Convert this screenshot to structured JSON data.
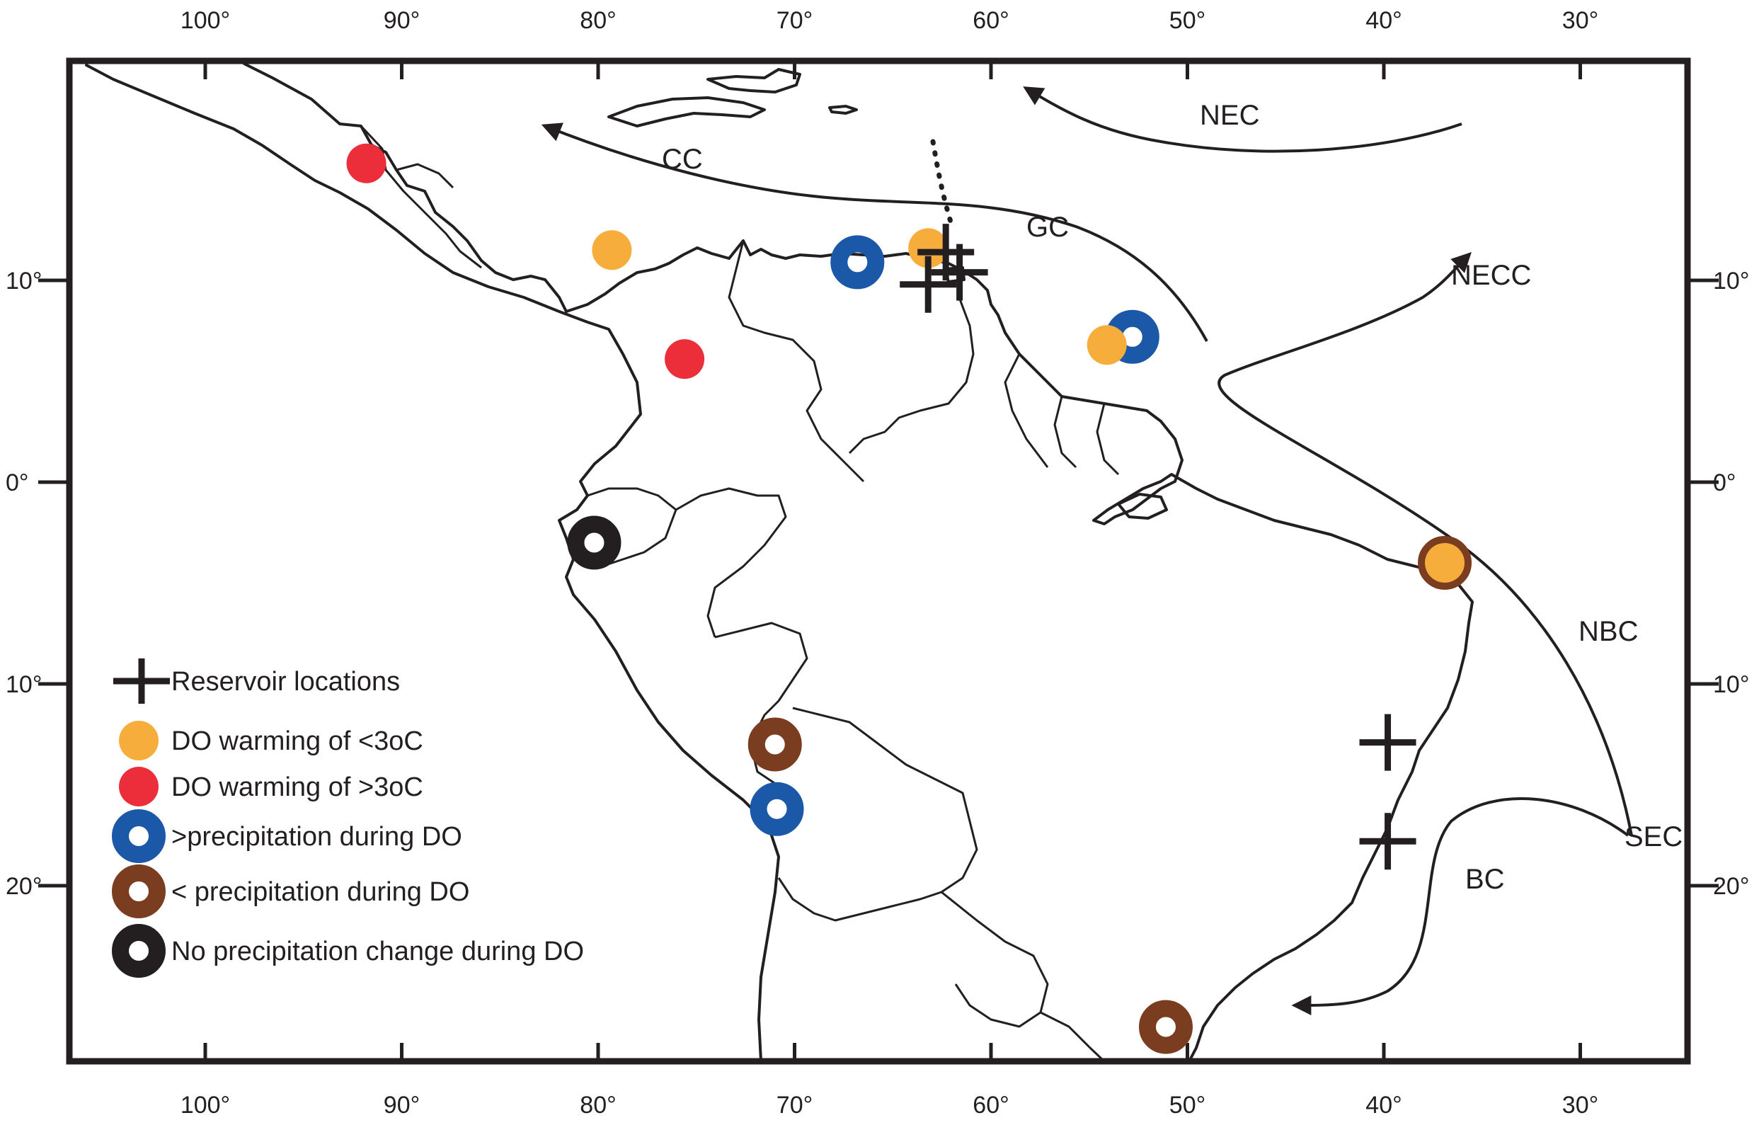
{
  "map": {
    "lon_ticks": [
      {
        "lon": 100,
        "label": "100°"
      },
      {
        "lon": 90,
        "label": "90°"
      },
      {
        "lon": 80,
        "label": "80°"
      },
      {
        "lon": 70,
        "label": "70°"
      },
      {
        "lon": 60,
        "label": "60°"
      },
      {
        "lon": 50,
        "label": "50°"
      },
      {
        "lon": 40,
        "label": "40°"
      },
      {
        "lon": 30,
        "label": "30°"
      }
    ],
    "lat_ticks": [
      {
        "lat": 10,
        "label": "10°"
      },
      {
        "lat": 0,
        "label": "0°"
      },
      {
        "lat": -10,
        "label": "10°"
      },
      {
        "lat": -20,
        "label": "20°"
      }
    ],
    "currents": {
      "nec": "NEC",
      "cc": "CC",
      "gc": "GC",
      "necc": "NECC",
      "nbc": "NBC",
      "sec": "SEC",
      "bc": "BC"
    },
    "colors": {
      "warming_lt3": "#f6ad3c",
      "warming_gt3": "#ec2d3a",
      "precip_increase": "#1c58a8",
      "precip_decrease": "#7b3d1f",
      "no_change": "#231f20",
      "line": "#231f20"
    },
    "sites": [
      {
        "type": "warming_gt3",
        "lon": 91.8,
        "lat": 15.8
      },
      {
        "type": "warming_lt3",
        "lon": 79.3,
        "lat": 11.5
      },
      {
        "type": "warming_gt3",
        "lon": 75.6,
        "lat": 6.1
      },
      {
        "type": "precip_increase",
        "lon": 66.8,
        "lat": 10.9
      },
      {
        "type": "warming_lt3",
        "lon": 63.2,
        "lat": 11.6
      },
      {
        "type": "precip_increase",
        "lon": 52.8,
        "lat": 7.2
      },
      {
        "type": "warming_lt3",
        "lon": 54.1,
        "lat": 6.8
      },
      {
        "type": "no_change",
        "lon": 80.2,
        "lat": -3.0
      },
      {
        "type": "precip_decrease",
        "lon": 36.9,
        "lat": -4.0
      },
      {
        "type": "warming_lt3",
        "lon": 36.9,
        "lat": -4.0
      },
      {
        "type": "precip_decrease",
        "lon": 71.0,
        "lat": -13.0
      },
      {
        "type": "precip_increase",
        "lon": 70.9,
        "lat": -16.2
      },
      {
        "type": "precip_decrease",
        "lon": 51.1,
        "lat": -27.0
      }
    ],
    "reservoirs": [
      {
        "lon": 62.3,
        "lat": 11.4
      },
      {
        "lon": 61.6,
        "lat": 10.4
      },
      {
        "lon": 63.2,
        "lat": 9.8
      },
      {
        "lon": 39.8,
        "lat": -12.9
      },
      {
        "lon": 39.8,
        "lat": -17.8
      }
    ]
  },
  "legend": {
    "items": [
      {
        "symbol": "cross",
        "label": "Reservoir locations"
      },
      {
        "symbol": "warming_lt3",
        "label": "DO warming of <3oC"
      },
      {
        "symbol": "warming_gt3",
        "label": "DO warming of >3oC"
      },
      {
        "symbol": "precip_increase",
        "label": ">precipitation during DO"
      },
      {
        "symbol": "precip_decrease",
        "label": "< precipitation during DO"
      },
      {
        "symbol": "no_change",
        "label": "No precipitation change during DO"
      }
    ]
  }
}
